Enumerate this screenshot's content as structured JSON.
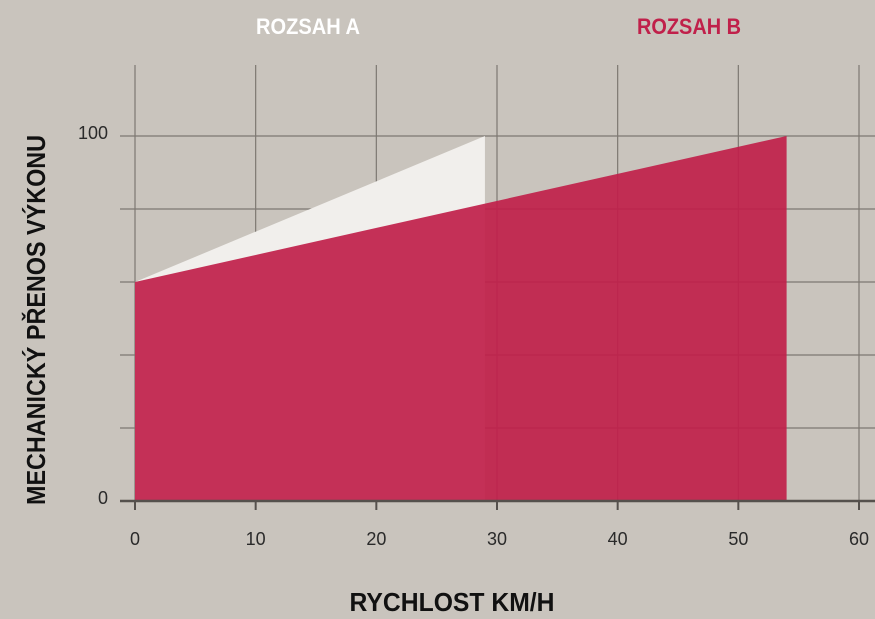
{
  "chart_data": {
    "type": "area",
    "xlabel": "RYCHLOST KM/H",
    "ylabel": "MECHANICKÝ PŘENOS VÝKONU",
    "series": [
      {
        "name": "ROZSAH A",
        "color": "#f1efec",
        "x": [
          0,
          29
        ],
        "values": [
          60,
          100
        ]
      },
      {
        "name": "ROZSAH B",
        "color": "#c0204a",
        "x": [
          0,
          54
        ],
        "values": [
          60,
          100
        ]
      }
    ],
    "xlim": [
      0,
      60
    ],
    "xticks": [
      0,
      10,
      20,
      30,
      40,
      50,
      60
    ],
    "ylim": [
      0,
      100
    ],
    "yticks": [
      0,
      100
    ],
    "minor_yticks": [
      20,
      40,
      60,
      80
    ],
    "grid": true
  }
}
